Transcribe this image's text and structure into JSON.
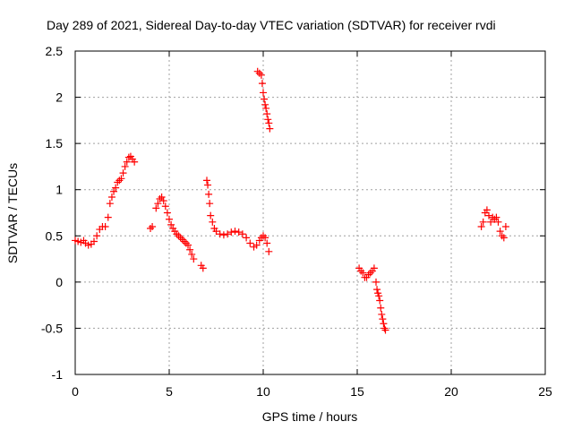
{
  "chart_data": {
    "type": "scatter",
    "title": "Day 289 of 2021, Sidereal Day-to-day VTEC variation (SDTVAR) for receiver rvdi",
    "xlabel": "GPS time / hours",
    "ylabel": "SDTVAR / TECUs",
    "xlim": [
      0,
      25
    ],
    "ylim": [
      -1,
      2.5
    ],
    "xticks": [
      0,
      5,
      10,
      15,
      20,
      25
    ],
    "xtick_labels": [
      "0",
      "5",
      "10",
      "15",
      "20",
      "25"
    ],
    "yticks": [
      -1,
      -0.5,
      0,
      0.5,
      1,
      1.5,
      2,
      2.5
    ],
    "ytick_labels": [
      "-1",
      "-0.5",
      "0",
      "0.5",
      "1",
      "1.5",
      "2",
      "2.5"
    ],
    "grid": true,
    "marker": "plus",
    "color": "#ff0000",
    "x": [
      0.0,
      0.15,
      0.3,
      0.45,
      0.55,
      0.7,
      0.85,
      1.0,
      1.15,
      1.3,
      1.45,
      1.6,
      1.75,
      1.85,
      1.95,
      2.05,
      2.15,
      2.25,
      2.35,
      2.45,
      2.55,
      2.65,
      2.75,
      2.85,
      2.95,
      3.05,
      3.15,
      4.0,
      4.1,
      4.3,
      4.4,
      4.5,
      4.6,
      4.7,
      4.8,
      4.9,
      5.0,
      5.1,
      5.2,
      5.3,
      5.4,
      5.5,
      5.6,
      5.7,
      5.8,
      5.9,
      6.0,
      6.1,
      6.2,
      6.3,
      6.7,
      6.8,
      7.0,
      7.05,
      7.1,
      7.15,
      7.2,
      7.3,
      7.4,
      7.5,
      7.7,
      7.9,
      8.1,
      8.3,
      8.5,
      8.7,
      8.9,
      9.1,
      9.3,
      9.5,
      9.65,
      9.8,
      9.9,
      10.0,
      10.1,
      10.2,
      10.3,
      9.7,
      9.8,
      9.9,
      9.95,
      10.0,
      10.05,
      10.1,
      10.15,
      10.2,
      10.25,
      10.3,
      10.35,
      15.1,
      15.2,
      15.3,
      15.4,
      15.5,
      15.6,
      15.7,
      15.8,
      15.9,
      16.0,
      16.05,
      16.1,
      16.15,
      16.2,
      16.25,
      16.3,
      16.35,
      16.4,
      16.45,
      16.5,
      21.6,
      21.7,
      21.8,
      21.9,
      22.0,
      22.1,
      22.2,
      22.3,
      22.4,
      22.5,
      22.6,
      22.7,
      22.8,
      22.9
    ],
    "y": [
      0.45,
      0.44,
      0.43,
      0.45,
      0.42,
      0.4,
      0.41,
      0.44,
      0.5,
      0.57,
      0.6,
      0.6,
      0.7,
      0.85,
      0.92,
      0.98,
      1.02,
      1.08,
      1.1,
      1.12,
      1.18,
      1.25,
      1.3,
      1.35,
      1.36,
      1.33,
      1.3,
      0.58,
      0.6,
      0.8,
      0.85,
      0.9,
      0.92,
      0.88,
      0.82,
      0.75,
      0.68,
      0.62,
      0.58,
      0.55,
      0.52,
      0.5,
      0.48,
      0.46,
      0.44,
      0.42,
      0.4,
      0.35,
      0.3,
      0.25,
      0.18,
      0.15,
      1.1,
      1.05,
      0.95,
      0.85,
      0.72,
      0.65,
      0.58,
      0.55,
      0.52,
      0.51,
      0.52,
      0.54,
      0.55,
      0.54,
      0.52,
      0.48,
      0.42,
      0.38,
      0.4,
      0.45,
      0.48,
      0.5,
      0.48,
      0.42,
      0.33,
      2.28,
      2.26,
      2.24,
      2.15,
      2.05,
      1.98,
      1.92,
      1.88,
      1.82,
      1.76,
      1.72,
      1.66,
      0.15,
      0.12,
      0.1,
      0.05,
      0.05,
      0.08,
      0.1,
      0.12,
      0.15,
      0.0,
      -0.08,
      -0.12,
      -0.15,
      -0.2,
      -0.28,
      -0.35,
      -0.4,
      -0.45,
      -0.5,
      -0.52,
      0.6,
      0.65,
      0.75,
      0.78,
      0.72,
      0.65,
      0.7,
      0.68,
      0.7,
      0.65,
      0.55,
      0.5,
      0.48,
      0.6
    ]
  }
}
